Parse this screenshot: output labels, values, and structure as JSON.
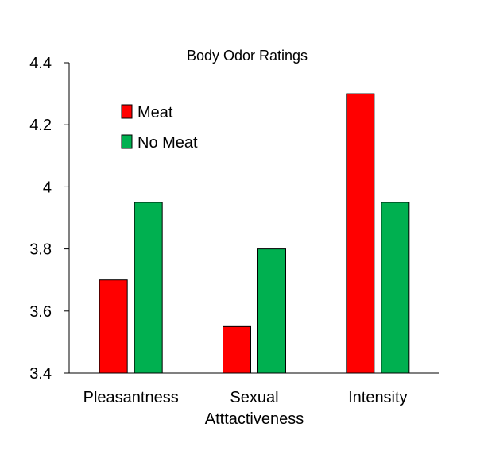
{
  "chart_data": {
    "type": "bar",
    "title": "Body Odor Ratings",
    "xlabel": "",
    "ylabel": "",
    "categories": [
      [
        "Pleasantness"
      ],
      [
        "Sexual",
        "Atttactiveness"
      ],
      [
        "Intensity"
      ]
    ],
    "series": [
      {
        "name": "Meat",
        "color": "#ff0000",
        "values": [
          3.7,
          3.55,
          4.3
        ]
      },
      {
        "name": "No Meat",
        "color": "#00b050",
        "values": [
          3.95,
          3.8,
          3.95
        ]
      }
    ],
    "ylim": [
      3.4,
      4.4
    ],
    "yticks": [
      3.4,
      3.6,
      3.8,
      4,
      4.2,
      4.4
    ],
    "ytick_labels": [
      "3.4",
      "3.6",
      "3.8",
      "4",
      "4.2",
      "4.4"
    ],
    "grid": false,
    "legend_position": "top-left"
  }
}
